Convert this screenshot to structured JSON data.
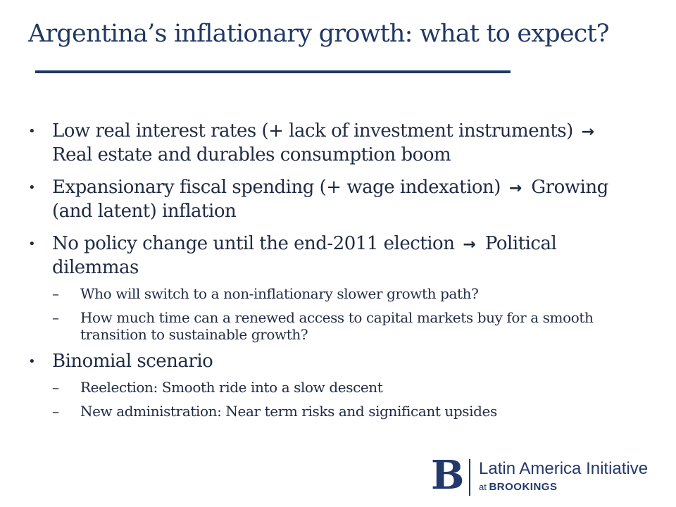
{
  "slide": {
    "title": "Argentina’s inflationary growth: what to expect?",
    "bullet_glyph": "•",
    "dash_glyph": "–",
    "arrow_glyph": "→",
    "bullets": [
      {
        "before": "Low real interest rates (+ lack of investment instruments)",
        "after": "Real estate and durables consumption boom"
      },
      {
        "before": "Expansionary fiscal spending (+ wage indexation)",
        "after": "Growing (and latent) inflation"
      },
      {
        "before": "No policy change until the end-2011 election",
        "after": "Political dilemmas",
        "subs": [
          "Who will switch to a non-inflationary slower growth path?",
          "How much time can a renewed access to capital markets buy for a smooth transition to sustainable growth?"
        ]
      },
      {
        "text": "Binomial scenario",
        "subs": [
          "Reelection: Smooth ride into a slow descent",
          "New administration: Near term risks and significant upsides"
        ]
      }
    ]
  },
  "logo": {
    "letter": "B",
    "name": "Latin America Initiative",
    "at": "at",
    "org": "BROOKINGS"
  },
  "colors": {
    "title": "#1f3864",
    "body": "#1f2a44",
    "logo": "#23386b"
  }
}
